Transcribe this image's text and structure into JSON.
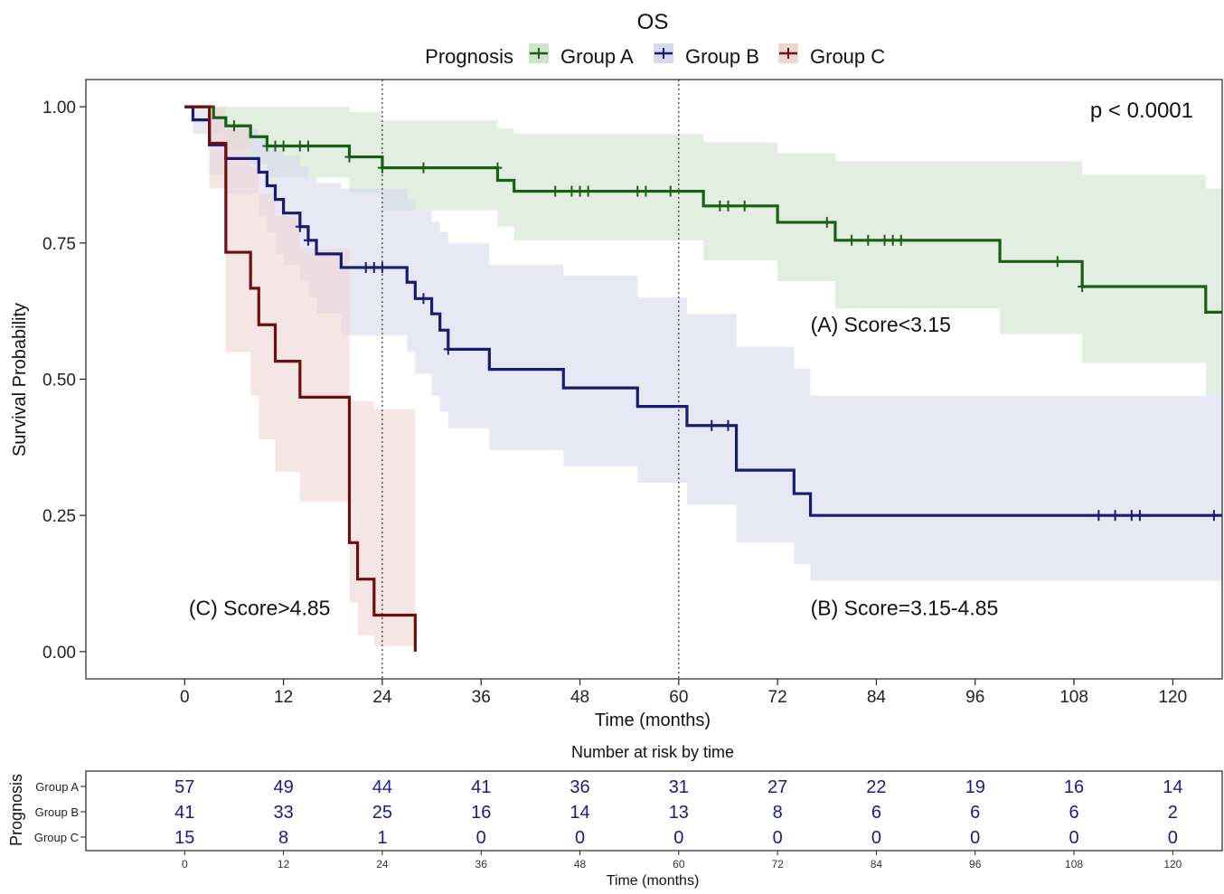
{
  "chart_data": {
    "type": "line",
    "subtype": "kaplan-meier",
    "title": "OS",
    "legend_title": "Prognosis",
    "legend_position": "top",
    "xlabel": "Time (months)",
    "ylabel": "Survival Probability",
    "xlim": [
      -12,
      126
    ],
    "ylim": [
      -0.05,
      1.05
    ],
    "x_ticks": [
      0,
      12,
      24,
      36,
      48,
      60,
      72,
      84,
      96,
      108,
      120
    ],
    "y_ticks": [
      0,
      0.25,
      0.5,
      0.75,
      1.0
    ],
    "y_tick_labels": [
      "0.00",
      "0.25",
      "0.50",
      "0.75",
      "1.00"
    ],
    "grid": false,
    "reference_lines_x": [
      24,
      60
    ],
    "p_value": "p < 0.0001",
    "annotations": [
      {
        "text": "(A) Score<3.15",
        "x": 76,
        "y": 0.6
      },
      {
        "text": "(B) Score=3.15-4.85",
        "x": 76,
        "y": 0.08
      },
      {
        "text": "(C) Score>4.85",
        "x": 0.5,
        "y": 0.08
      }
    ],
    "series": [
      {
        "name": "Group A",
        "color": "#1b5e16",
        "band_color": "#cfe3cc",
        "steps": [
          [
            0,
            1.0
          ],
          [
            3.5,
            0.98
          ],
          [
            5,
            0.965
          ],
          [
            8,
            0.945
          ],
          [
            10,
            0.928
          ],
          [
            20,
            0.908
          ],
          [
            24,
            0.888
          ],
          [
            38,
            0.865
          ],
          [
            40,
            0.845
          ],
          [
            63,
            0.818
          ],
          [
            72,
            0.788
          ],
          [
            79,
            0.755
          ],
          [
            99,
            0.716
          ],
          [
            109,
            0.67
          ],
          [
            124,
            0.623
          ],
          [
            126,
            0.623
          ]
        ],
        "lower": [
          [
            0,
            1.0
          ],
          [
            3.5,
            0.95
          ],
          [
            5,
            0.92
          ],
          [
            8,
            0.895
          ],
          [
            10,
            0.87
          ],
          [
            20,
            0.842
          ],
          [
            24,
            0.81
          ],
          [
            38,
            0.78
          ],
          [
            40,
            0.755
          ],
          [
            63,
            0.718
          ],
          [
            72,
            0.68
          ],
          [
            79,
            0.63
          ],
          [
            99,
            0.583
          ],
          [
            109,
            0.53
          ],
          [
            124,
            0.47
          ],
          [
            126,
            0.47
          ]
        ],
        "upper": [
          [
            0,
            1.0
          ],
          [
            3.5,
            1.0
          ],
          [
            5,
            1.0
          ],
          [
            8,
            1.0
          ],
          [
            10,
            1.0
          ],
          [
            20,
            0.99
          ],
          [
            24,
            0.975
          ],
          [
            38,
            0.96
          ],
          [
            40,
            0.95
          ],
          [
            63,
            0.935
          ],
          [
            72,
            0.915
          ],
          [
            79,
            0.9
          ],
          [
            99,
            0.9
          ],
          [
            109,
            0.875
          ],
          [
            124,
            0.85
          ],
          [
            126,
            0.84
          ]
        ],
        "censors": [
          [
            6,
            0.965
          ],
          [
            10,
            0.928
          ],
          [
            11,
            0.928
          ],
          [
            12,
            0.928
          ],
          [
            14,
            0.928
          ],
          [
            15,
            0.928
          ],
          [
            20,
            0.908
          ],
          [
            24,
            0.888
          ],
          [
            29,
            0.888
          ],
          [
            38,
            0.888
          ],
          [
            45,
            0.845
          ],
          [
            47,
            0.845
          ],
          [
            48,
            0.845
          ],
          [
            49,
            0.845
          ],
          [
            55,
            0.845
          ],
          [
            56,
            0.845
          ],
          [
            59,
            0.845
          ],
          [
            65,
            0.818
          ],
          [
            66,
            0.818
          ],
          [
            68,
            0.818
          ],
          [
            78,
            0.788
          ],
          [
            81,
            0.755
          ],
          [
            83,
            0.755
          ],
          [
            85,
            0.755
          ],
          [
            86,
            0.755
          ],
          [
            87,
            0.755
          ],
          [
            106,
            0.716
          ],
          [
            109,
            0.67
          ]
        ]
      },
      {
        "name": "Group B",
        "color": "#1a1a6e",
        "band_color": "#d8d8ee",
        "steps": [
          [
            0,
            1.0
          ],
          [
            1,
            0.976
          ],
          [
            3,
            0.93
          ],
          [
            5,
            0.905
          ],
          [
            9,
            0.88
          ],
          [
            10,
            0.855
          ],
          [
            11,
            0.83
          ],
          [
            12,
            0.805
          ],
          [
            14,
            0.78
          ],
          [
            15,
            0.755
          ],
          [
            16,
            0.73
          ],
          [
            19,
            0.705
          ],
          [
            27,
            0.678
          ],
          [
            28,
            0.648
          ],
          [
            30,
            0.62
          ],
          [
            31,
            0.59
          ],
          [
            32,
            0.555
          ],
          [
            37,
            0.518
          ],
          [
            46,
            0.484
          ],
          [
            55,
            0.45
          ],
          [
            61,
            0.415
          ],
          [
            67,
            0.333
          ],
          [
            74,
            0.29
          ],
          [
            76,
            0.25
          ],
          [
            126,
            0.25
          ]
        ],
        "lower": [
          [
            0,
            1.0
          ],
          [
            1,
            0.95
          ],
          [
            3,
            0.875
          ],
          [
            5,
            0.84
          ],
          [
            9,
            0.8
          ],
          [
            10,
            0.77
          ],
          [
            11,
            0.73
          ],
          [
            12,
            0.71
          ],
          [
            14,
            0.68
          ],
          [
            15,
            0.65
          ],
          [
            16,
            0.62
          ],
          [
            19,
            0.58
          ],
          [
            27,
            0.55
          ],
          [
            28,
            0.51
          ],
          [
            30,
            0.47
          ],
          [
            31,
            0.44
          ],
          [
            32,
            0.41
          ],
          [
            37,
            0.37
          ],
          [
            46,
            0.34
          ],
          [
            55,
            0.31
          ],
          [
            61,
            0.27
          ],
          [
            67,
            0.2
          ],
          [
            74,
            0.16
          ],
          [
            76,
            0.13
          ],
          [
            126,
            0.13
          ]
        ],
        "upper": [
          [
            0,
            1.0
          ],
          [
            1,
            1.0
          ],
          [
            3,
            0.98
          ],
          [
            5,
            0.96
          ],
          [
            9,
            0.94
          ],
          [
            10,
            0.93
          ],
          [
            11,
            0.92
          ],
          [
            12,
            0.91
          ],
          [
            14,
            0.89
          ],
          [
            15,
            0.87
          ],
          [
            16,
            0.86
          ],
          [
            19,
            0.85
          ],
          [
            27,
            0.83
          ],
          [
            28,
            0.81
          ],
          [
            30,
            0.79
          ],
          [
            31,
            0.77
          ],
          [
            32,
            0.75
          ],
          [
            37,
            0.71
          ],
          [
            46,
            0.69
          ],
          [
            55,
            0.65
          ],
          [
            61,
            0.62
          ],
          [
            67,
            0.56
          ],
          [
            74,
            0.52
          ],
          [
            76,
            0.47
          ],
          [
            126,
            0.47
          ]
        ],
        "censors": [
          [
            14,
            0.78
          ],
          [
            15,
            0.755
          ],
          [
            22,
            0.705
          ],
          [
            23,
            0.705
          ],
          [
            24,
            0.705
          ],
          [
            29,
            0.648
          ],
          [
            32,
            0.555
          ],
          [
            64,
            0.415
          ],
          [
            66,
            0.415
          ],
          [
            111,
            0.25
          ],
          [
            113,
            0.25
          ],
          [
            115,
            0.25
          ],
          [
            116,
            0.25
          ],
          [
            125,
            0.25
          ]
        ]
      },
      {
        "name": "Group C",
        "color": "#6e0f0f",
        "band_color": "#efd6d6",
        "steps": [
          [
            0,
            1.0
          ],
          [
            3,
            0.933
          ],
          [
            5,
            0.733
          ],
          [
            8,
            0.667
          ],
          [
            9,
            0.6
          ],
          [
            11,
            0.533
          ],
          [
            14,
            0.467
          ],
          [
            20,
            0.2
          ],
          [
            21,
            0.133
          ],
          [
            23,
            0.067
          ],
          [
            28,
            0.0
          ]
        ],
        "lower": [
          [
            0,
            1.0
          ],
          [
            3,
            0.85
          ],
          [
            5,
            0.55
          ],
          [
            8,
            0.47
          ],
          [
            9,
            0.39
          ],
          [
            11,
            0.33
          ],
          [
            14,
            0.275
          ],
          [
            20,
            0.09
          ],
          [
            21,
            0.03
          ],
          [
            23,
            0.01
          ],
          [
            28,
            0.01
          ]
        ],
        "upper": [
          [
            0,
            1.0
          ],
          [
            3,
            1.0
          ],
          [
            5,
            0.96
          ],
          [
            8,
            0.89
          ],
          [
            9,
            0.84
          ],
          [
            11,
            0.8
          ],
          [
            14,
            0.74
          ],
          [
            20,
            0.46
          ],
          [
            21,
            0.46
          ],
          [
            23,
            0.445
          ],
          [
            28,
            0.445
          ]
        ],
        "censors": []
      }
    ],
    "risk_table": {
      "title": "Number at risk by time",
      "ylabel": "Prognosis",
      "xlabel": "Time (months)",
      "times": [
        0,
        12,
        24,
        36,
        48,
        60,
        72,
        84,
        96,
        108,
        120
      ],
      "rows": [
        {
          "group": "Group A",
          "values": [
            57,
            49,
            44,
            41,
            36,
            31,
            27,
            22,
            19,
            16,
            14
          ]
        },
        {
          "group": "Group B",
          "values": [
            41,
            33,
            25,
            16,
            14,
            13,
            8,
            6,
            6,
            6,
            2
          ]
        },
        {
          "group": "Group C",
          "values": [
            15,
            8,
            1,
            0,
            0,
            0,
            0,
            0,
            0,
            0,
            0
          ]
        }
      ]
    }
  }
}
